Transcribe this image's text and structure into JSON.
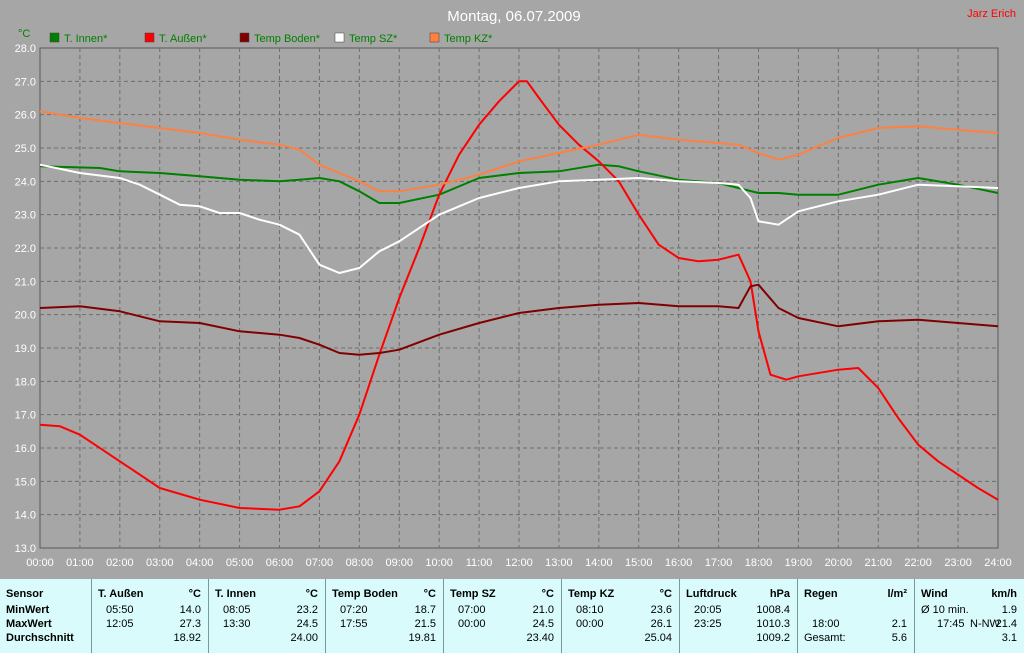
{
  "chart_data": {
    "type": "line",
    "title": "Montag, 06.07.2009",
    "author": "Jarz Erich",
    "ylabel": "°C",
    "ylim": [
      13.0,
      28.0
    ],
    "y_ticks": [
      "13.0",
      "14.0",
      "15.0",
      "16.0",
      "17.0",
      "18.0",
      "19.0",
      "20.0",
      "21.0",
      "22.0",
      "23.0",
      "24.0",
      "25.0",
      "26.0",
      "27.0",
      "28.0"
    ],
    "x_ticks": [
      "00:00",
      "01:00",
      "02:00",
      "03:00",
      "04:00",
      "05:00",
      "06:00",
      "07:00",
      "08:00",
      "09:00",
      "10:00",
      "11:00",
      "12:00",
      "13:00",
      "14:00",
      "15:00",
      "16:00",
      "17:00",
      "18:00",
      "19:00",
      "20:00",
      "21:00",
      "22:00",
      "23:00",
      "24:00"
    ],
    "xlim": [
      0,
      24
    ],
    "grid": true,
    "legend_position": "top-left",
    "series": [
      {
        "name": "T. Innen*",
        "color": "#008000",
        "points": [
          [
            0,
            24.45
          ],
          [
            1.5,
            24.4
          ],
          [
            2,
            24.3
          ],
          [
            3,
            24.25
          ],
          [
            4,
            24.15
          ],
          [
            5,
            24.05
          ],
          [
            6,
            24.0
          ],
          [
            6.5,
            24.05
          ],
          [
            7,
            24.1
          ],
          [
            7.5,
            24.0
          ],
          [
            8,
            23.7
          ],
          [
            8.5,
            23.35
          ],
          [
            9,
            23.35
          ],
          [
            10,
            23.6
          ],
          [
            11,
            24.1
          ],
          [
            12,
            24.25
          ],
          [
            13,
            24.3
          ],
          [
            14,
            24.5
          ],
          [
            14.5,
            24.45
          ],
          [
            15,
            24.3
          ],
          [
            16,
            24.05
          ],
          [
            17,
            23.95
          ],
          [
            17.5,
            23.8
          ],
          [
            18,
            23.65
          ],
          [
            18.5,
            23.65
          ],
          [
            19,
            23.6
          ],
          [
            20,
            23.6
          ],
          [
            21,
            23.9
          ],
          [
            22,
            24.1
          ],
          [
            23,
            23.9
          ],
          [
            24,
            23.65
          ]
        ]
      },
      {
        "name": "T. Außen*",
        "color": "#ff0000",
        "points": [
          [
            0,
            16.7
          ],
          [
            0.5,
            16.65
          ],
          [
            1,
            16.4
          ],
          [
            2,
            15.6
          ],
          [
            3,
            14.8
          ],
          [
            4,
            14.45
          ],
          [
            5,
            14.2
          ],
          [
            6,
            14.15
          ],
          [
            6.5,
            14.25
          ],
          [
            7,
            14.7
          ],
          [
            7.5,
            15.6
          ],
          [
            8,
            17.0
          ],
          [
            8.5,
            18.8
          ],
          [
            9,
            20.5
          ],
          [
            9.5,
            22.0
          ],
          [
            10,
            23.6
          ],
          [
            10.5,
            24.8
          ],
          [
            11,
            25.7
          ],
          [
            11.5,
            26.4
          ],
          [
            12,
            27.0
          ],
          [
            12.2,
            27.0
          ],
          [
            12.5,
            26.5
          ],
          [
            13,
            25.7
          ],
          [
            13.5,
            25.1
          ],
          [
            14,
            24.6
          ],
          [
            14.5,
            24.0
          ],
          [
            15,
            23.0
          ],
          [
            15.5,
            22.1
          ],
          [
            16,
            21.7
          ],
          [
            16.5,
            21.6
          ],
          [
            17,
            21.65
          ],
          [
            17.5,
            21.8
          ],
          [
            17.8,
            21.0
          ],
          [
            18,
            19.5
          ],
          [
            18.3,
            18.2
          ],
          [
            18.7,
            18.05
          ],
          [
            19,
            18.15
          ],
          [
            20,
            18.35
          ],
          [
            20.5,
            18.4
          ],
          [
            21,
            17.8
          ],
          [
            21.5,
            16.9
          ],
          [
            22,
            16.1
          ],
          [
            22.5,
            15.6
          ],
          [
            23,
            15.2
          ],
          [
            23.5,
            14.8
          ],
          [
            24,
            14.45
          ]
        ]
      },
      {
        "name": "Temp Boden*",
        "color": "#800000",
        "points": [
          [
            0,
            20.2
          ],
          [
            1,
            20.25
          ],
          [
            2,
            20.1
          ],
          [
            3,
            19.8
          ],
          [
            4,
            19.75
          ],
          [
            5,
            19.5
          ],
          [
            6,
            19.4
          ],
          [
            6.5,
            19.3
          ],
          [
            7,
            19.1
          ],
          [
            7.5,
            18.85
          ],
          [
            8,
            18.8
          ],
          [
            8.5,
            18.85
          ],
          [
            9,
            18.95
          ],
          [
            10,
            19.4
          ],
          [
            11,
            19.75
          ],
          [
            12,
            20.05
          ],
          [
            13,
            20.2
          ],
          [
            14,
            20.3
          ],
          [
            15,
            20.35
          ],
          [
            16,
            20.25
          ],
          [
            17,
            20.25
          ],
          [
            17.5,
            20.2
          ],
          [
            17.8,
            20.85
          ],
          [
            18,
            20.9
          ],
          [
            18.5,
            20.2
          ],
          [
            19,
            19.9
          ],
          [
            20,
            19.65
          ],
          [
            21,
            19.8
          ],
          [
            22,
            19.85
          ],
          [
            23,
            19.75
          ],
          [
            24,
            19.65
          ]
        ]
      },
      {
        "name": "Temp SZ*",
        "color": "#ffffff",
        "points": [
          [
            0,
            24.5
          ],
          [
            1,
            24.25
          ],
          [
            2,
            24.1
          ],
          [
            2.5,
            23.9
          ],
          [
            3,
            23.6
          ],
          [
            3.5,
            23.3
          ],
          [
            4,
            23.25
          ],
          [
            4.5,
            23.05
          ],
          [
            5,
            23.05
          ],
          [
            5.5,
            22.85
          ],
          [
            6,
            22.7
          ],
          [
            6.5,
            22.4
          ],
          [
            7,
            21.5
          ],
          [
            7.5,
            21.25
          ],
          [
            8,
            21.4
          ],
          [
            8.5,
            21.9
          ],
          [
            9,
            22.2
          ],
          [
            10,
            23.0
          ],
          [
            11,
            23.5
          ],
          [
            12,
            23.8
          ],
          [
            13,
            24.0
          ],
          [
            14,
            24.05
          ],
          [
            15,
            24.1
          ],
          [
            16,
            24.0
          ],
          [
            17,
            23.95
          ],
          [
            17.5,
            23.9
          ],
          [
            17.8,
            23.5
          ],
          [
            18,
            22.8
          ],
          [
            18.5,
            22.7
          ],
          [
            19,
            23.1
          ],
          [
            20,
            23.4
          ],
          [
            21,
            23.6
          ],
          [
            22,
            23.9
          ],
          [
            23,
            23.85
          ],
          [
            24,
            23.8
          ]
        ]
      },
      {
        "name": "Temp KZ*",
        "color": "#ff8040",
        "points": [
          [
            0,
            26.1
          ],
          [
            1,
            25.9
          ],
          [
            2,
            25.75
          ],
          [
            3,
            25.6
          ],
          [
            4,
            25.45
          ],
          [
            5,
            25.25
          ],
          [
            6,
            25.1
          ],
          [
            6.5,
            24.95
          ],
          [
            7,
            24.5
          ],
          [
            7.5,
            24.25
          ],
          [
            8,
            24.0
          ],
          [
            8.5,
            23.7
          ],
          [
            9,
            23.7
          ],
          [
            10,
            23.9
          ],
          [
            11,
            24.2
          ],
          [
            12,
            24.6
          ],
          [
            13,
            24.85
          ],
          [
            14,
            25.1
          ],
          [
            15,
            25.4
          ],
          [
            16,
            25.25
          ],
          [
            17,
            25.15
          ],
          [
            17.5,
            25.1
          ],
          [
            18,
            24.85
          ],
          [
            18.5,
            24.65
          ],
          [
            19,
            24.8
          ],
          [
            20,
            25.3
          ],
          [
            21,
            25.6
          ],
          [
            22,
            25.65
          ],
          [
            23,
            25.55
          ],
          [
            24,
            25.45
          ]
        ]
      }
    ]
  },
  "table": {
    "columns": [
      {
        "header": "Sensor",
        "unit": "",
        "min_time": "",
        "min_val": "",
        "max_time": "",
        "max_val": "",
        "avg": ""
      },
      {
        "header": "T. Außen",
        "unit": "°C",
        "min_time": "05:50",
        "min_val": "14.0",
        "max_time": "12:05",
        "max_val": "27.3",
        "avg": "18.92"
      },
      {
        "header": "T. Innen",
        "unit": "°C",
        "min_time": "08:05",
        "min_val": "23.2",
        "max_time": "13:30",
        "max_val": "24.5",
        "avg": "24.00"
      },
      {
        "header": "Temp Boden",
        "unit": "°C",
        "min_time": "07:20",
        "min_val": "18.7",
        "max_time": "17:55",
        "max_val": "21.5",
        "avg": "19.81"
      },
      {
        "header": "Temp SZ",
        "unit": "°C",
        "min_time": "07:00",
        "min_val": "21.0",
        "max_time": "00:00",
        "max_val": "24.5",
        "avg": "23.40"
      },
      {
        "header": "Temp KZ",
        "unit": "°C",
        "min_time": "08:10",
        "min_val": "23.6",
        "max_time": "00:00",
        "max_val": "26.1",
        "avg": "25.04"
      },
      {
        "header": "Luftdruck",
        "unit": "hPa",
        "min_time": "20:05",
        "min_val": "1008.4",
        "max_time": "23:25",
        "max_val": "1010.3",
        "avg": "1009.2"
      },
      {
        "header": "Regen",
        "unit": "l/m²",
        "min_time": "",
        "min_val": "",
        "max_time": "18:00",
        "max_val": "2.1",
        "avg_label": "Gesamt:",
        "avg": "5.6"
      },
      {
        "header": "Wind",
        "unit": "km/h",
        "min_time": "Ø 10 min.",
        "min_val": "1.9",
        "max_time": "17:45",
        "max_extra": "N-NW",
        "max_val": "21.4",
        "avg": "3.1"
      }
    ],
    "row_labels": [
      "MinWert",
      "MaxWert",
      "Durchschnitt"
    ]
  }
}
